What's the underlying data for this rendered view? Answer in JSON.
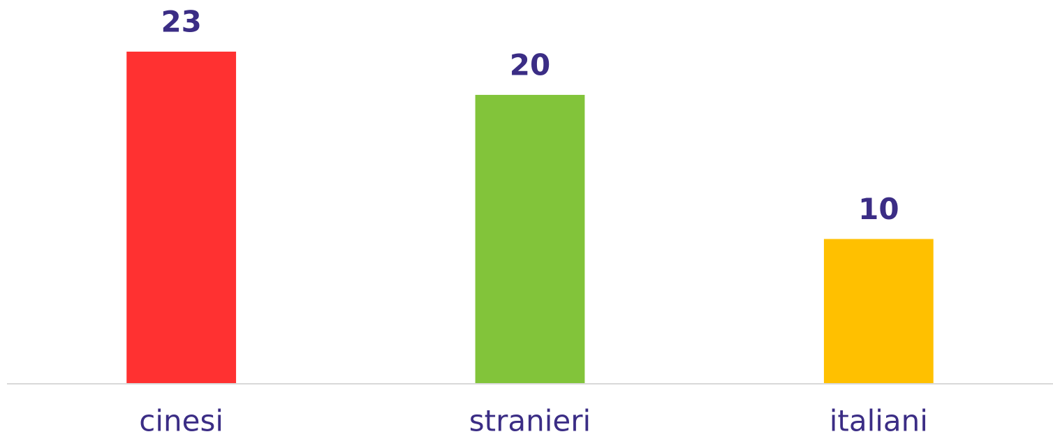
{
  "chart_data": {
    "type": "bar",
    "categories": [
      "cinesi",
      "stranieri",
      "italiani"
    ],
    "values": [
      23,
      20,
      10
    ],
    "colors": [
      "#ff3131",
      "#82c43a",
      "#ffc000"
    ]
  }
}
